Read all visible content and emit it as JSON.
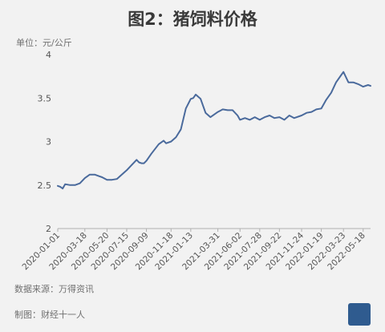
{
  "header": {
    "title": "图2：猪饲料价格",
    "unit_label": "单位：元/公斤"
  },
  "footer": {
    "source": "数据来源：万得资讯",
    "maker": "制图：财经十一人"
  },
  "colors": {
    "line": "#4a6a9c",
    "axis": "#b0b0b0",
    "text": "#555555"
  },
  "chart_data": {
    "type": "line",
    "title": "图2：猪饲料价格",
    "ylabel": "单位：元/公斤",
    "xlabel": "",
    "ylim": [
      2,
      4
    ],
    "yticks": [
      2,
      2.5,
      3,
      3.5,
      4
    ],
    "ytick_labels": [
      "2",
      "2.5",
      "3",
      "3.5",
      "4"
    ],
    "grid": false,
    "x_tick_labels": [
      "2020-01-01",
      "2020-03-18",
      "2020-05-20",
      "2020-07-15",
      "2020-09-09",
      "2020-11-18",
      "2021-01-13",
      "2021-03-31",
      "2021-06-02",
      "2021-07-28",
      "2021-09-22",
      "2021-11-24",
      "2022-01-19",
      "2022-03-23",
      "2022-05-18"
    ],
    "x": [
      "2020-01-01",
      "2020-01-08",
      "2020-01-15",
      "2020-01-22",
      "2020-02-05",
      "2020-02-19",
      "2020-03-04",
      "2020-03-18",
      "2020-04-01",
      "2020-04-15",
      "2020-04-29",
      "2020-05-06",
      "2020-05-20",
      "2020-06-03",
      "2020-06-17",
      "2020-07-01",
      "2020-07-15",
      "2020-07-29",
      "2020-08-12",
      "2020-08-19",
      "2020-08-26",
      "2020-09-02",
      "2020-09-09",
      "2020-09-23",
      "2020-10-14",
      "2020-10-28",
      "2020-11-04",
      "2020-11-18",
      "2020-12-02",
      "2020-12-16",
      "2020-12-30",
      "2021-01-13",
      "2021-01-20",
      "2021-01-27",
      "2021-02-10",
      "2021-02-24",
      "2021-03-10",
      "2021-03-31",
      "2021-04-14",
      "2021-04-28",
      "2021-05-12",
      "2021-05-26",
      "2021-06-02",
      "2021-06-16",
      "2021-06-30",
      "2021-07-14",
      "2021-07-28",
      "2021-08-11",
      "2021-08-25",
      "2021-09-08",
      "2021-09-22",
      "2021-10-06",
      "2021-10-20",
      "2021-11-03",
      "2021-11-24",
      "2021-12-08",
      "2021-12-22",
      "2022-01-05",
      "2022-01-19",
      "2022-02-02",
      "2022-02-16",
      "2022-03-02",
      "2022-03-16",
      "2022-03-23",
      "2022-04-06",
      "2022-04-20",
      "2022-05-04",
      "2022-05-18",
      "2022-06-01",
      "2022-06-08"
    ],
    "series": [
      {
        "values": [
          2.49,
          2.48,
          2.46,
          2.51,
          2.5,
          2.5,
          2.52,
          2.58,
          2.62,
          2.62,
          2.6,
          2.59,
          2.56,
          2.56,
          2.57,
          2.62,
          2.67,
          2.73,
          2.79,
          2.76,
          2.75,
          2.75,
          2.78,
          2.86,
          2.97,
          3.01,
          2.98,
          3.0,
          3.05,
          3.14,
          3.38,
          3.49,
          3.5,
          3.54,
          3.49,
          3.33,
          3.28,
          3.34,
          3.37,
          3.36,
          3.36,
          3.3,
          3.25,
          3.27,
          3.25,
          3.28,
          3.25,
          3.28,
          3.3,
          3.27,
          3.28,
          3.25,
          3.3,
          3.27,
          3.3,
          3.33,
          3.34,
          3.37,
          3.38,
          3.48,
          3.56,
          3.68,
          3.76,
          3.8,
          3.68,
          3.68,
          3.66,
          3.63,
          3.65,
          3.64
        ]
      }
    ]
  }
}
